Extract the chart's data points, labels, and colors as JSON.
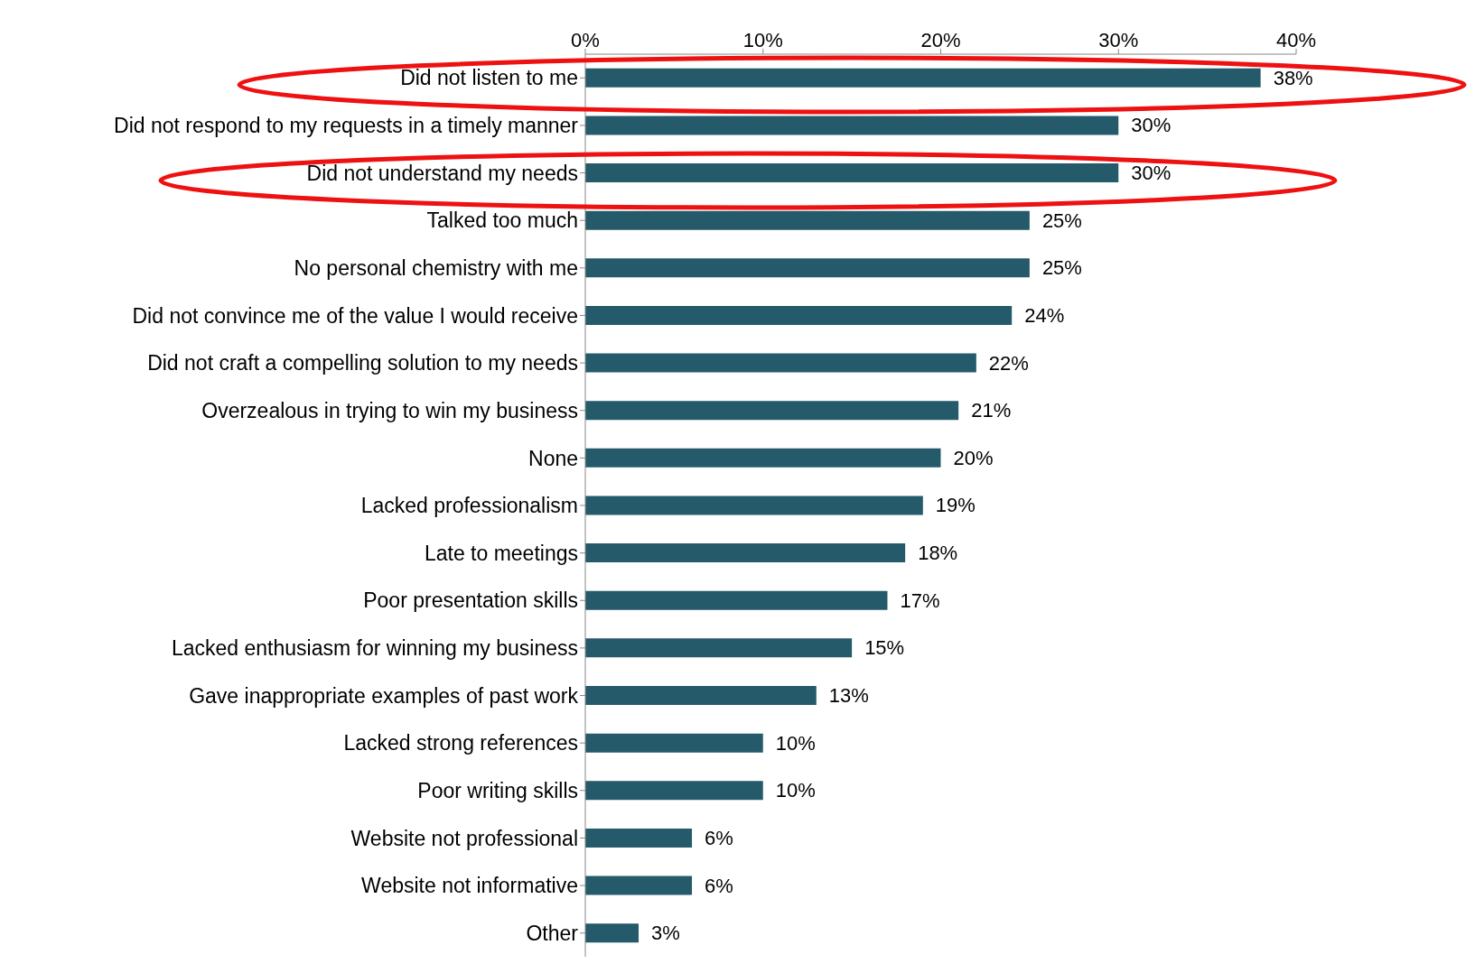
{
  "chart_data": {
    "type": "bar",
    "orientation": "horizontal",
    "categories": [
      "Did not listen to me",
      "Did not respond to my requests in a timely manner",
      "Did not understand my needs",
      "Talked too much",
      "No personal chemistry with me",
      "Did not convince me of the value I would receive",
      "Did not craft a compelling solution to my needs",
      "Overzealous in trying to win my business",
      "None",
      "Lacked professionalism",
      "Late to meetings",
      "Poor presentation skills",
      "Lacked enthusiasm for winning my business",
      "Gave inappropriate examples of past work",
      "Lacked strong references",
      "Poor writing skills",
      "Website not professional",
      "Website not informative",
      "Other"
    ],
    "values": [
      38,
      30,
      30,
      25,
      25,
      24,
      22,
      21,
      20,
      19,
      18,
      17,
      15,
      13,
      10,
      10,
      6,
      6,
      3
    ],
    "value_labels": [
      "38%",
      "30%",
      "30%",
      "25%",
      "25%",
      "24%",
      "22%",
      "21%",
      "20%",
      "19%",
      "18%",
      "17%",
      "15%",
      "13%",
      "10%",
      "10%",
      "6%",
      "6%",
      "3%"
    ],
    "color": "#245a6a",
    "xlim": [
      0,
      40
    ],
    "xticks": [
      {
        "value": 0,
        "label": "0%"
      },
      {
        "value": 10,
        "label": "10%"
      },
      {
        "value": 20,
        "label": "20%"
      },
      {
        "value": 30,
        "label": "30%"
      },
      {
        "value": 40,
        "label": "40%"
      }
    ],
    "grid": false,
    "legend": false
  }
}
